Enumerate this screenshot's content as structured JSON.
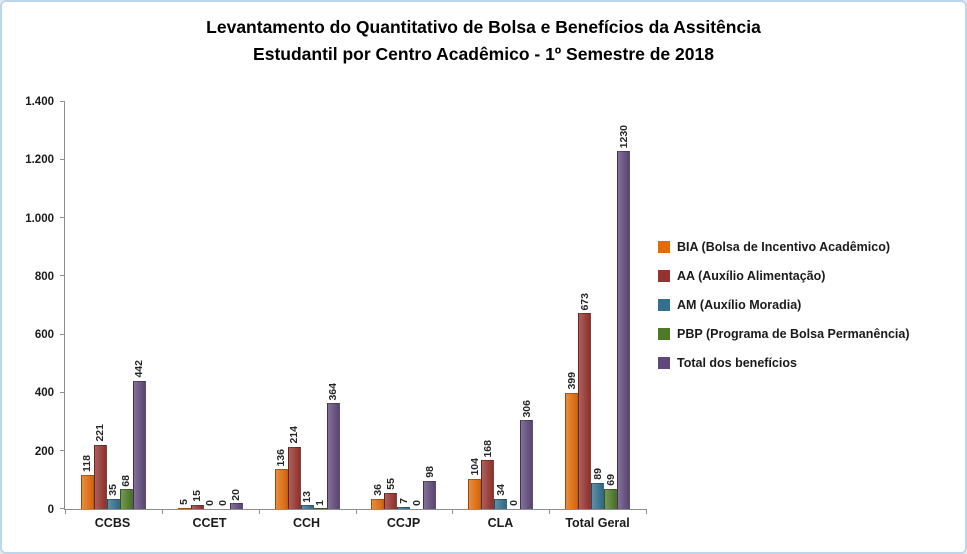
{
  "chart": {
    "title_line1": "Levantamento do Quantitativo de Bolsa e Benefícios da Assitência",
    "title_line2": "Estudantil  por Centro Acadêmico - 1º Semestre de 2018"
  },
  "chart_data": {
    "type": "bar",
    "title": "Levantamento do Quantitativo de Bolsa e Benefícios da Assitência Estudantil por Centro Acadêmico - 1º Semestre de 2018",
    "categories": [
      "CCBS",
      "CCET",
      "CCH",
      "CCJP",
      "CLA",
      "Total Geral"
    ],
    "series": [
      {
        "name": "BIA (Bolsa de Incentivo Acadêmico)",
        "color": "#E36C0A",
        "values": [
          118,
          5,
          136,
          36,
          104,
          399
        ]
      },
      {
        "name": "AA (Auxílio Alimentação)",
        "color": "#97332E",
        "values": [
          221,
          15,
          214,
          55,
          168,
          673
        ]
      },
      {
        "name": "AM (Auxílio Moradia)",
        "color": "#31708E",
        "values": [
          35,
          0,
          13,
          7,
          34,
          89
        ]
      },
      {
        "name": "PBP (Programa de Bolsa Permanência)",
        "color": "#4E7A27",
        "values": [
          68,
          0,
          1,
          0,
          0,
          69
        ]
      },
      {
        "name": "Total dos benefícios",
        "color": "#5F497A",
        "values": [
          442,
          20,
          364,
          98,
          306,
          1230
        ]
      }
    ],
    "xlabel": "",
    "ylabel": "",
    "ylim": [
      0,
      1400
    ],
    "ytick_step": 200,
    "ytick_labels": [
      "0",
      "200",
      "400",
      "600",
      "800",
      "1.000",
      "1.200",
      "1.400"
    ],
    "grid": false,
    "legend_position": "right",
    "data_labels": "rotated-vertical-above-bars"
  }
}
